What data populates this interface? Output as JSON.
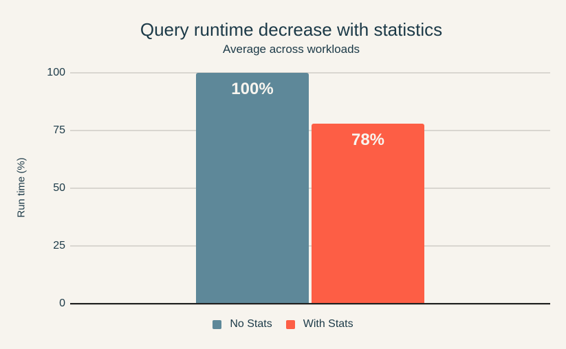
{
  "chart_data": {
    "type": "bar",
    "title": "Query runtime decrease with statistics",
    "subtitle": "Average across workloads",
    "xlabel": "",
    "ylabel": "Run time (%)",
    "ylim": [
      0,
      100
    ],
    "yticks": [
      0,
      25,
      50,
      75,
      100
    ],
    "grid": true,
    "legend_position": "bottom",
    "series": [
      {
        "name": "No Stats",
        "value": 100,
        "label": "100%",
        "color": "#5e8899"
      },
      {
        "name": "With Stats",
        "value": 78,
        "label": "78%",
        "color": "#fd5e45"
      }
    ]
  },
  "colors": {
    "background": "#f7f4ee",
    "text": "#1b3947",
    "gridline": "#d9d6d0",
    "axis": "#212121",
    "bar_label": "#f8f5ef"
  }
}
